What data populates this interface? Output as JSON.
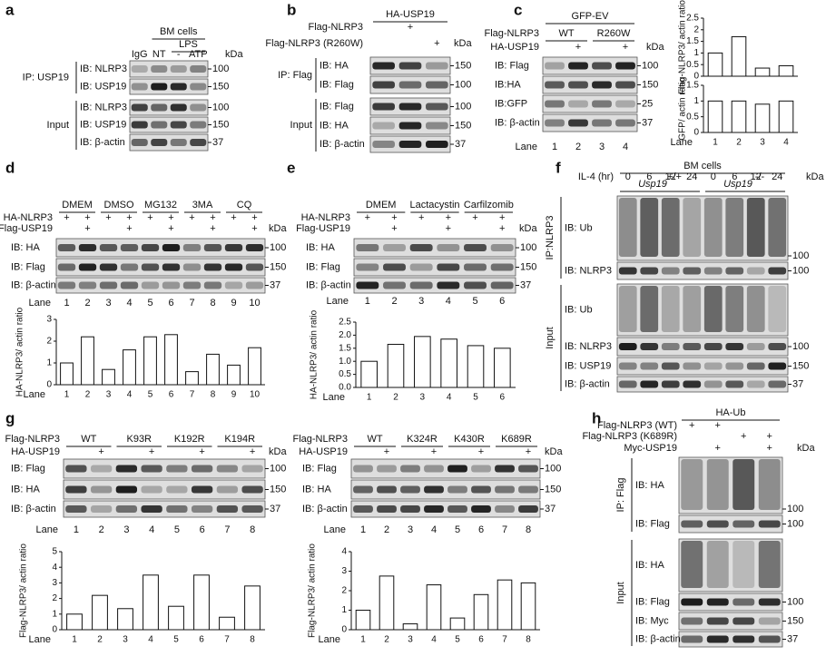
{
  "panels": [
    {
      "letter": "a",
      "headers": [
        "BM cells",
        "LPS"
      ],
      "conditions": [
        {
          "values": [
            "IgG",
            "NT",
            "-",
            "ATP"
          ]
        }
      ],
      "kda": "kDa",
      "groups": [
        {
          "label": "IP: USP19",
          "rows": [
            "IB: NLRP3",
            "IB: USP19"
          ]
        },
        {
          "label": "Input",
          "rows": [
            "IB: NLRP3",
            "IB: USP19",
            "IB: β-actin"
          ]
        }
      ],
      "markers": [
        100,
        150,
        100,
        150,
        37
      ]
    },
    {
      "letter": "b",
      "headers": [
        "HA-USP19"
      ],
      "conditions": [
        {
          "label": "Flag-NLRP3",
          "values": [
            null,
            "+",
            null
          ]
        },
        {
          "label": "Flag-NLRP3 (R260W)",
          "values": [
            null,
            null,
            "+"
          ]
        }
      ],
      "kda": "kDa",
      "groups": [
        {
          "label": "IP: Flag",
          "rows": [
            "IB: HA",
            "IB: Flag"
          ]
        },
        {
          "label": "Input",
          "rows": [
            "IB: Flag",
            "IB: HA",
            "IB: β-actin"
          ]
        }
      ],
      "markers": [
        150,
        100,
        100,
        150,
        37
      ]
    },
    {
      "letter": "c",
      "headers": [
        "GFP-EV",
        "WT",
        "R260W"
      ],
      "conditions": [
        {
          "label": "Flag-NLRP3"
        },
        {
          "label": "HA-USP19",
          "values": [
            null,
            "+",
            null,
            "+"
          ]
        }
      ],
      "kda": "kDa",
      "groups": [
        {
          "rows": [
            "IB: Flag",
            "IB:HA",
            "IB:GFP",
            "IB: β-actin"
          ]
        }
      ],
      "markers": [
        100,
        150,
        25,
        37
      ],
      "lane_label": "Lane",
      "lanes": [
        1,
        2,
        3,
        4
      ],
      "charts": [
        {
          "ylabel": "Flag-NLRP3/ actin ratio",
          "ylim": [
            0,
            2.5
          ],
          "yticks": [
            0,
            0.5,
            1,
            1.5,
            2,
            2.5
          ],
          "values": [
            1,
            1.7,
            0.35,
            0.45
          ]
        },
        {
          "ylabel": "GFP/ actin ratio",
          "ylim": [
            0,
            1.5
          ],
          "yticks": [
            0,
            0.5,
            1,
            1.5
          ],
          "values": [
            1,
            1,
            0.9,
            1
          ],
          "xlabel": "Lane",
          "categories": [
            1,
            2,
            3,
            4
          ]
        }
      ]
    },
    {
      "letter": "d",
      "headers": [
        "DMEM",
        "DMSO",
        "MG132",
        "3MA",
        "CQ"
      ],
      "conditions": [
        {
          "label": "HA-NLRP3",
          "values": [
            "+",
            "+",
            "+",
            "+",
            "+",
            "+",
            "+",
            "+",
            "+",
            "+"
          ]
        },
        {
          "label": "Flag-USP19",
          "values": [
            null,
            "+",
            null,
            "+",
            null,
            "+",
            null,
            "+",
            null,
            "+"
          ]
        }
      ],
      "kda": "kDa",
      "groups": [
        {
          "rows": [
            "IB: HA",
            "IB: Flag",
            "IB: β-actin"
          ]
        }
      ],
      "markers": [
        100,
        150,
        37
      ],
      "lane_label": "Lane",
      "lanes": [
        1,
        2,
        3,
        4,
        5,
        6,
        7,
        8,
        9,
        10
      ],
      "charts": [
        {
          "ylabel": "HA-NLRP3/ actin ratio",
          "ylim": [
            0,
            3
          ],
          "yticks": [
            0,
            1,
            2,
            3
          ],
          "values": [
            1,
            2.2,
            0.7,
            1.6,
            2.2,
            2.3,
            0.6,
            1.4,
            0.9,
            1.7
          ],
          "xlabel": "Lane",
          "categories": [
            1,
            2,
            3,
            4,
            5,
            6,
            7,
            8,
            9,
            10
          ]
        }
      ]
    },
    {
      "letter": "e",
      "headers": [
        "DMEM",
        "Lactacystin",
        "Carfilzomib"
      ],
      "conditions": [
        {
          "label": "HA-NLRP3",
          "values": [
            "+",
            "+",
            "+",
            "+",
            "+",
            "+"
          ]
        },
        {
          "label": "Flag-USP19",
          "values": [
            null,
            "+",
            null,
            "+",
            null,
            "+"
          ]
        }
      ],
      "kda": "kDa",
      "groups": [
        {
          "rows": [
            "IB: HA",
            "IB: Flag",
            "IB: β-actin"
          ]
        }
      ],
      "markers": [
        100,
        150,
        37
      ],
      "lane_label": "Lane",
      "lanes": [
        1,
        2,
        3,
        4,
        5,
        6
      ],
      "charts": [
        {
          "ylabel": "HA-NLRP3/ actin ratio",
          "ylim": [
            0,
            2.5
          ],
          "yticks": [
            {
              "value": 0,
              "label": "0.0"
            },
            {
              "value": 0.5,
              "label": "0.5"
            },
            {
              "value": 1,
              "label": "1.0"
            },
            {
              "value": 1.5,
              "label": "1.5"
            },
            {
              "value": 2,
              "label": "2.0"
            },
            {
              "value": 2.5,
              "label": "2.5"
            }
          ],
          "values": [
            1,
            1.65,
            1.95,
            1.85,
            1.6,
            1.5
          ],
          "xlabel": "Lane",
          "categories": [
            1,
            2,
            3,
            4,
            5,
            6
          ]
        }
      ]
    },
    {
      "letter": "f",
      "headers": [
        "BM cells",
        "Usp19",
        "+/+",
        "Usp19",
        "-/-"
      ],
      "conditions": [
        {
          "label": "IL-4 (hr)",
          "values": [
            0,
            6,
            12,
            24,
            0,
            6,
            12,
            24
          ]
        }
      ],
      "kda": "kDa",
      "groups": [
        {
          "label": "IP:NLRP3",
          "rows": [
            "IB: Ub",
            "IB: NLRP3"
          ]
        },
        {
          "label": "Input",
          "rows": [
            "IB: Ub",
            "IB: NLRP3",
            "IB: USP19",
            "IB: β-actin"
          ]
        }
      ],
      "markers": [
        100,
        100,
        null,
        100,
        150,
        37
      ]
    },
    {
      "letter": "g",
      "headers": [
        "WT",
        "K93R",
        "K192R",
        "K194R"
      ],
      "conditions": [
        {
          "label": "Flag-NLRP3"
        },
        {
          "label": "HA-USP19",
          "values": [
            null,
            "+",
            null,
            "+",
            null,
            "+",
            null,
            "+"
          ]
        }
      ],
      "kda": "kDa",
      "groups": [
        {
          "rows": [
            "IB: Flag",
            "IB: HA",
            "IB: β-actin"
          ]
        }
      ],
      "markers": [
        100,
        150,
        37
      ],
      "lane_label": "Lane",
      "lanes": [
        1,
        2,
        3,
        4,
        5,
        6,
        7,
        8
      ],
      "charts": [
        {
          "ylabel": "Flag-NLRP3/ actin ratio",
          "ylim": [
            0,
            5
          ],
          "yticks": [
            0,
            1,
            2,
            3,
            4,
            5
          ],
          "values": [
            1,
            2.2,
            1.35,
            3.5,
            1.5,
            3.5,
            0.8,
            2.8
          ],
          "xlabel": "Lane",
          "categories": [
            1,
            2,
            3,
            4,
            5,
            6,
            7,
            8
          ]
        }
      ]
    },
    {
      "headers": [
        "WT",
        "K324R",
        "K430R",
        "K689R"
      ],
      "conditions": [
        {
          "label": "Flag-NLRP3"
        },
        {
          "label": "HA-USP19",
          "values": [
            null,
            "+",
            null,
            "+",
            null,
            "+",
            null,
            "+"
          ]
        }
      ],
      "kda": "kDa",
      "groups": [
        {
          "rows": [
            "IB: Flag",
            "IB: HA",
            "IB: β-actin"
          ]
        }
      ],
      "markers": [
        100,
        150,
        37
      ],
      "lane_label": "Lane",
      "lanes": [
        1,
        2,
        3,
        4,
        5,
        6,
        7,
        8
      ],
      "charts": [
        {
          "ylabel": "Flag-NLRP3/ actin ratio",
          "ylim": [
            0,
            4
          ],
          "yticks": [
            0,
            1,
            2,
            3,
            4
          ],
          "values": [
            1,
            2.75,
            0.3,
            2.3,
            0.6,
            1.8,
            2.55,
            2.4
          ],
          "xlabel": "Lane",
          "categories": [
            1,
            2,
            3,
            4,
            5,
            6,
            7,
            8
          ]
        }
      ]
    },
    {
      "letter": "h",
      "headers": [
        "HA-Ub"
      ],
      "conditions": [
        {
          "label": "Flag-NLRP3 (WT)",
          "values": [
            "+",
            "+",
            null,
            null
          ]
        },
        {
          "label": "Flag-NLRP3 (K689R)",
          "values": [
            null,
            null,
            "+",
            "+"
          ]
        },
        {
          "label": "Myc-USP19",
          "values": [
            null,
            "+",
            null,
            "+"
          ]
        }
      ],
      "kda": "kDa",
      "groups": [
        {
          "label": "IP: Flag",
          "rows": [
            "IB: HA",
            "IB: Flag"
          ]
        },
        {
          "label": "Input",
          "rows": [
            "IB: HA",
            "IB: Flag",
            "IB: Myc",
            "IB: β-actin"
          ]
        }
      ],
      "markers": [
        100,
        100,
        null,
        100,
        150,
        37
      ]
    }
  ]
}
